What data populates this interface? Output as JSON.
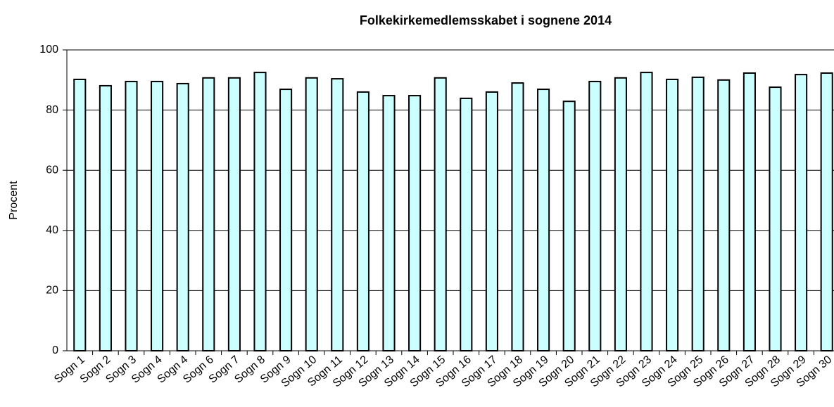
{
  "chart_data": {
    "type": "bar",
    "title": "Folkekirkemedlemsskabet i sognene 2014",
    "y_label": "Procent",
    "categories": [
      "Sogn 1",
      "Sogn 2",
      "Sogn 3",
      "Sogn 4",
      "Sogn 4",
      "Sogn 6",
      "Sogn 7",
      "Sogn 8",
      "Sogn 9",
      "Sogn 10",
      "Sogn 11",
      "Sogn 12",
      "Sogn 13",
      "Sogn 14",
      "Sogn 15",
      "Sogn 16",
      "Sogn 17",
      "Sogn 18",
      "Sogn 19",
      "Sogn 20",
      "Sogn 21",
      "Sogn 22",
      "Sogn 23",
      "Sogn 24",
      "Sogn 25",
      "Sogn 26",
      "Sogn 27",
      "Sogn 28",
      "Sogn 29",
      "Sogn 30"
    ],
    "values": [
      90.2,
      88.1,
      89.5,
      89.5,
      88.8,
      90.7,
      90.7,
      92.5,
      86.9,
      90.7,
      90.4,
      86.0,
      84.8,
      84.8,
      90.7,
      83.9,
      86.0,
      89.0,
      86.9,
      82.9,
      89.5,
      90.7,
      92.5,
      90.2,
      90.9,
      90.0,
      92.3,
      87.6,
      91.8,
      92.3
    ],
    "color": "#ccffff",
    "ylim": [
      0,
      100
    ],
    "yticks": [
      0,
      20,
      40,
      60,
      80,
      100
    ],
    "grid": true
  }
}
